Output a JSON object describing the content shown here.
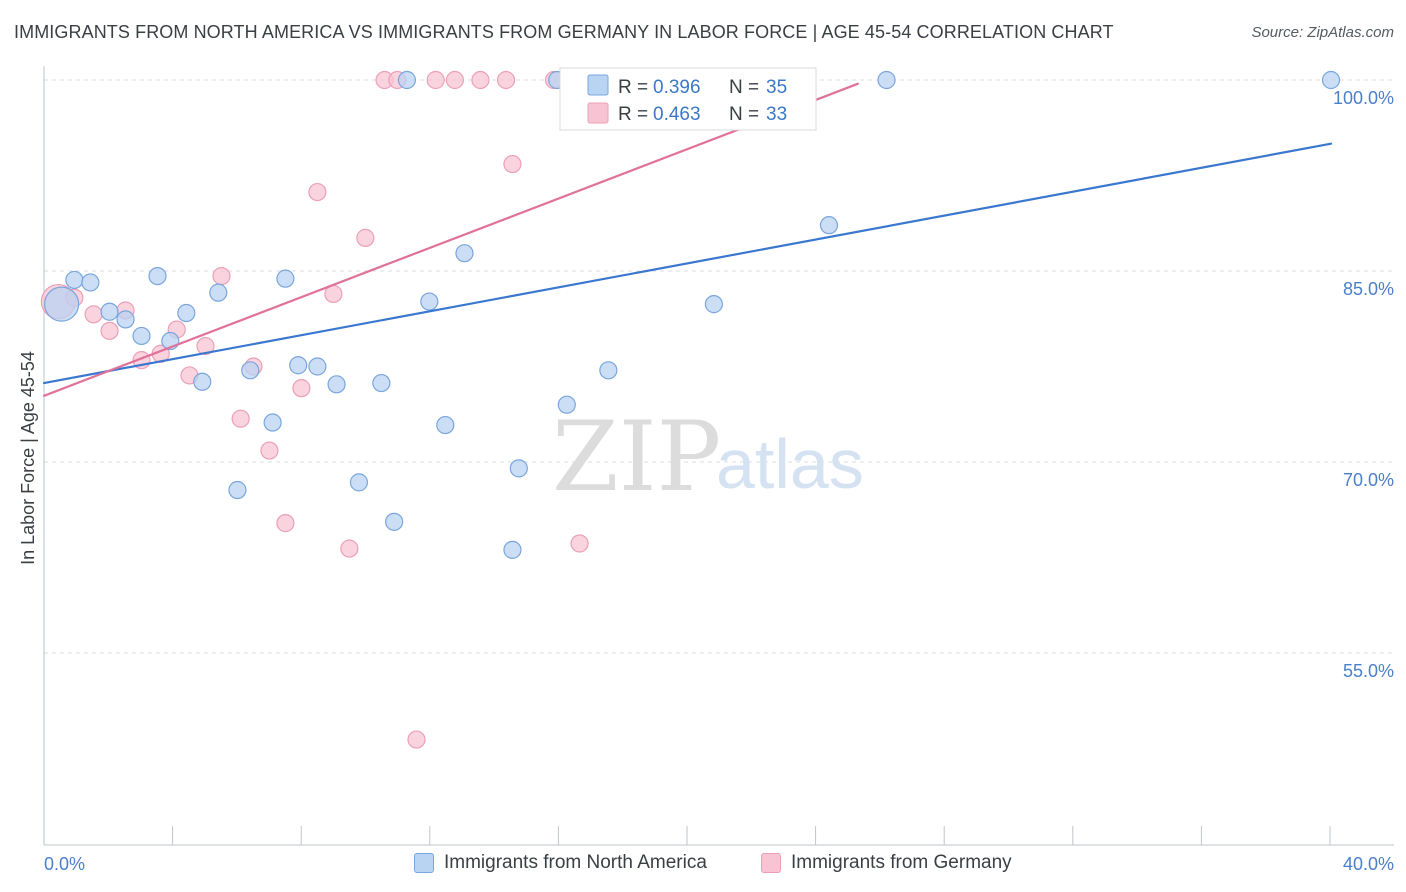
{
  "title": "IMMIGRANTS FROM NORTH AMERICA VS IMMIGRANTS FROM GERMANY IN LABOR FORCE | AGE 45-54 CORRELATION CHART",
  "source": "Source: ZipAtlas.com",
  "watermark": {
    "zip": "ZIP",
    "atlas": "atlas"
  },
  "legend": {
    "r_label": "R =",
    "n_label": "N =",
    "blue_r": "0.396",
    "blue_n": "35",
    "pink_r": "0.463",
    "pink_n": "33"
  },
  "colors": {
    "blue_fill": "#b9d3f2",
    "blue_stroke": "#7aa6dd",
    "blue_line": "#3a78d0",
    "pink_fill": "#f7c4d3",
    "pink_stroke": "#eba0b6",
    "pink_line": "#e0729a",
    "tick_text": "#4a7fc9",
    "grid": "#d8dde3"
  },
  "chart_data": {
    "type": "scatter",
    "title": "IMMIGRANTS FROM NORTH AMERICA VS IMMIGRANTS FROM GERMANY IN LABOR FORCE | AGE 45-54 CORRELATION CHART",
    "xlabel": "",
    "ylabel": "In Labor Force | Age 45-54",
    "xlim": [
      0,
      40
    ],
    "ylim": [
      40,
      102
    ],
    "x_tick_labels": [
      "0.0%",
      "40.0%"
    ],
    "y_ticks": [
      100,
      85,
      70,
      55
    ],
    "y_tick_labels": [
      "100.0%",
      "85.0%",
      "70.0%",
      "55.0%"
    ],
    "grid": true,
    "legend_position": "top-center",
    "series": [
      {
        "name": "Immigrants from North America",
        "r": 0.396,
        "n": 35,
        "trend": {
          "x": [
            0,
            40
          ],
          "y": [
            76.2,
            95.0
          ]
        },
        "points": [
          {
            "x": 0.3,
            "y": 82.4,
            "big": true
          },
          {
            "x": 0.7,
            "y": 84.3
          },
          {
            "x": 1.2,
            "y": 84.1
          },
          {
            "x": 1.8,
            "y": 81.8
          },
          {
            "x": 2.3,
            "y": 81.2
          },
          {
            "x": 2.8,
            "y": 79.9
          },
          {
            "x": 3.3,
            "y": 84.6
          },
          {
            "x": 3.7,
            "y": 79.5
          },
          {
            "x": 4.2,
            "y": 81.7
          },
          {
            "x": 4.7,
            "y": 76.3
          },
          {
            "x": 5.2,
            "y": 83.3
          },
          {
            "x": 5.8,
            "y": 67.8
          },
          {
            "x": 6.2,
            "y": 77.2
          },
          {
            "x": 6.9,
            "y": 73.1
          },
          {
            "x": 7.3,
            "y": 84.4
          },
          {
            "x": 7.7,
            "y": 77.6
          },
          {
            "x": 8.3,
            "y": 77.5
          },
          {
            "x": 8.9,
            "y": 76.1
          },
          {
            "x": 9.6,
            "y": 68.4
          },
          {
            "x": 10.3,
            "y": 76.2
          },
          {
            "x": 10.7,
            "y": 65.3
          },
          {
            "x": 11.1,
            "y": 100.0
          },
          {
            "x": 11.8,
            "y": 82.6
          },
          {
            "x": 12.3,
            "y": 72.9
          },
          {
            "x": 12.9,
            "y": 86.4
          },
          {
            "x": 14.4,
            "y": 63.1
          },
          {
            "x": 14.6,
            "y": 69.5
          },
          {
            "x": 15.8,
            "y": 100.0
          },
          {
            "x": 16.1,
            "y": 74.5
          },
          {
            "x": 17.4,
            "y": 77.2
          },
          {
            "x": 17.7,
            "y": 100.0
          },
          {
            "x": 20.7,
            "y": 82.4
          },
          {
            "x": 24.3,
            "y": 88.6
          },
          {
            "x": 26.1,
            "y": 100.0
          },
          {
            "x": 40.0,
            "y": 100.0
          }
        ]
      },
      {
        "name": "Immigrants from Germany",
        "r": 0.463,
        "n": 33,
        "trend": {
          "x": [
            0,
            25.2
          ],
          "y": [
            75.2,
            99.7
          ]
        },
        "points": [
          {
            "x": 0.2,
            "y": 82.6,
            "big": true
          },
          {
            "x": 0.7,
            "y": 82.9
          },
          {
            "x": 1.3,
            "y": 81.6
          },
          {
            "x": 1.8,
            "y": 80.3
          },
          {
            "x": 2.3,
            "y": 81.9
          },
          {
            "x": 2.8,
            "y": 78.0
          },
          {
            "x": 3.4,
            "y": 78.5
          },
          {
            "x": 3.9,
            "y": 80.4
          },
          {
            "x": 4.3,
            "y": 76.8
          },
          {
            "x": 4.8,
            "y": 79.1
          },
          {
            "x": 5.3,
            "y": 84.6
          },
          {
            "x": 5.9,
            "y": 73.4
          },
          {
            "x": 6.3,
            "y": 77.5
          },
          {
            "x": 6.8,
            "y": 70.9
          },
          {
            "x": 7.3,
            "y": 65.2
          },
          {
            "x": 7.8,
            "y": 75.8
          },
          {
            "x": 8.3,
            "y": 91.2
          },
          {
            "x": 8.8,
            "y": 83.2
          },
          {
            "x": 9.3,
            "y": 63.2
          },
          {
            "x": 9.8,
            "y": 87.6
          },
          {
            "x": 10.4,
            "y": 100.0
          },
          {
            "x": 10.8,
            "y": 100.0
          },
          {
            "x": 11.4,
            "y": 48.2
          },
          {
            "x": 12.0,
            "y": 100.0
          },
          {
            "x": 12.6,
            "y": 100.0
          },
          {
            "x": 13.4,
            "y": 100.0
          },
          {
            "x": 14.2,
            "y": 100.0
          },
          {
            "x": 14.4,
            "y": 93.4
          },
          {
            "x": 15.7,
            "y": 100.0
          },
          {
            "x": 16.5,
            "y": 63.6
          },
          {
            "x": 17.9,
            "y": 97.4
          },
          {
            "x": 21.6,
            "y": 100.0
          },
          {
            "x": 23.6,
            "y": 100.0
          }
        ]
      }
    ]
  }
}
